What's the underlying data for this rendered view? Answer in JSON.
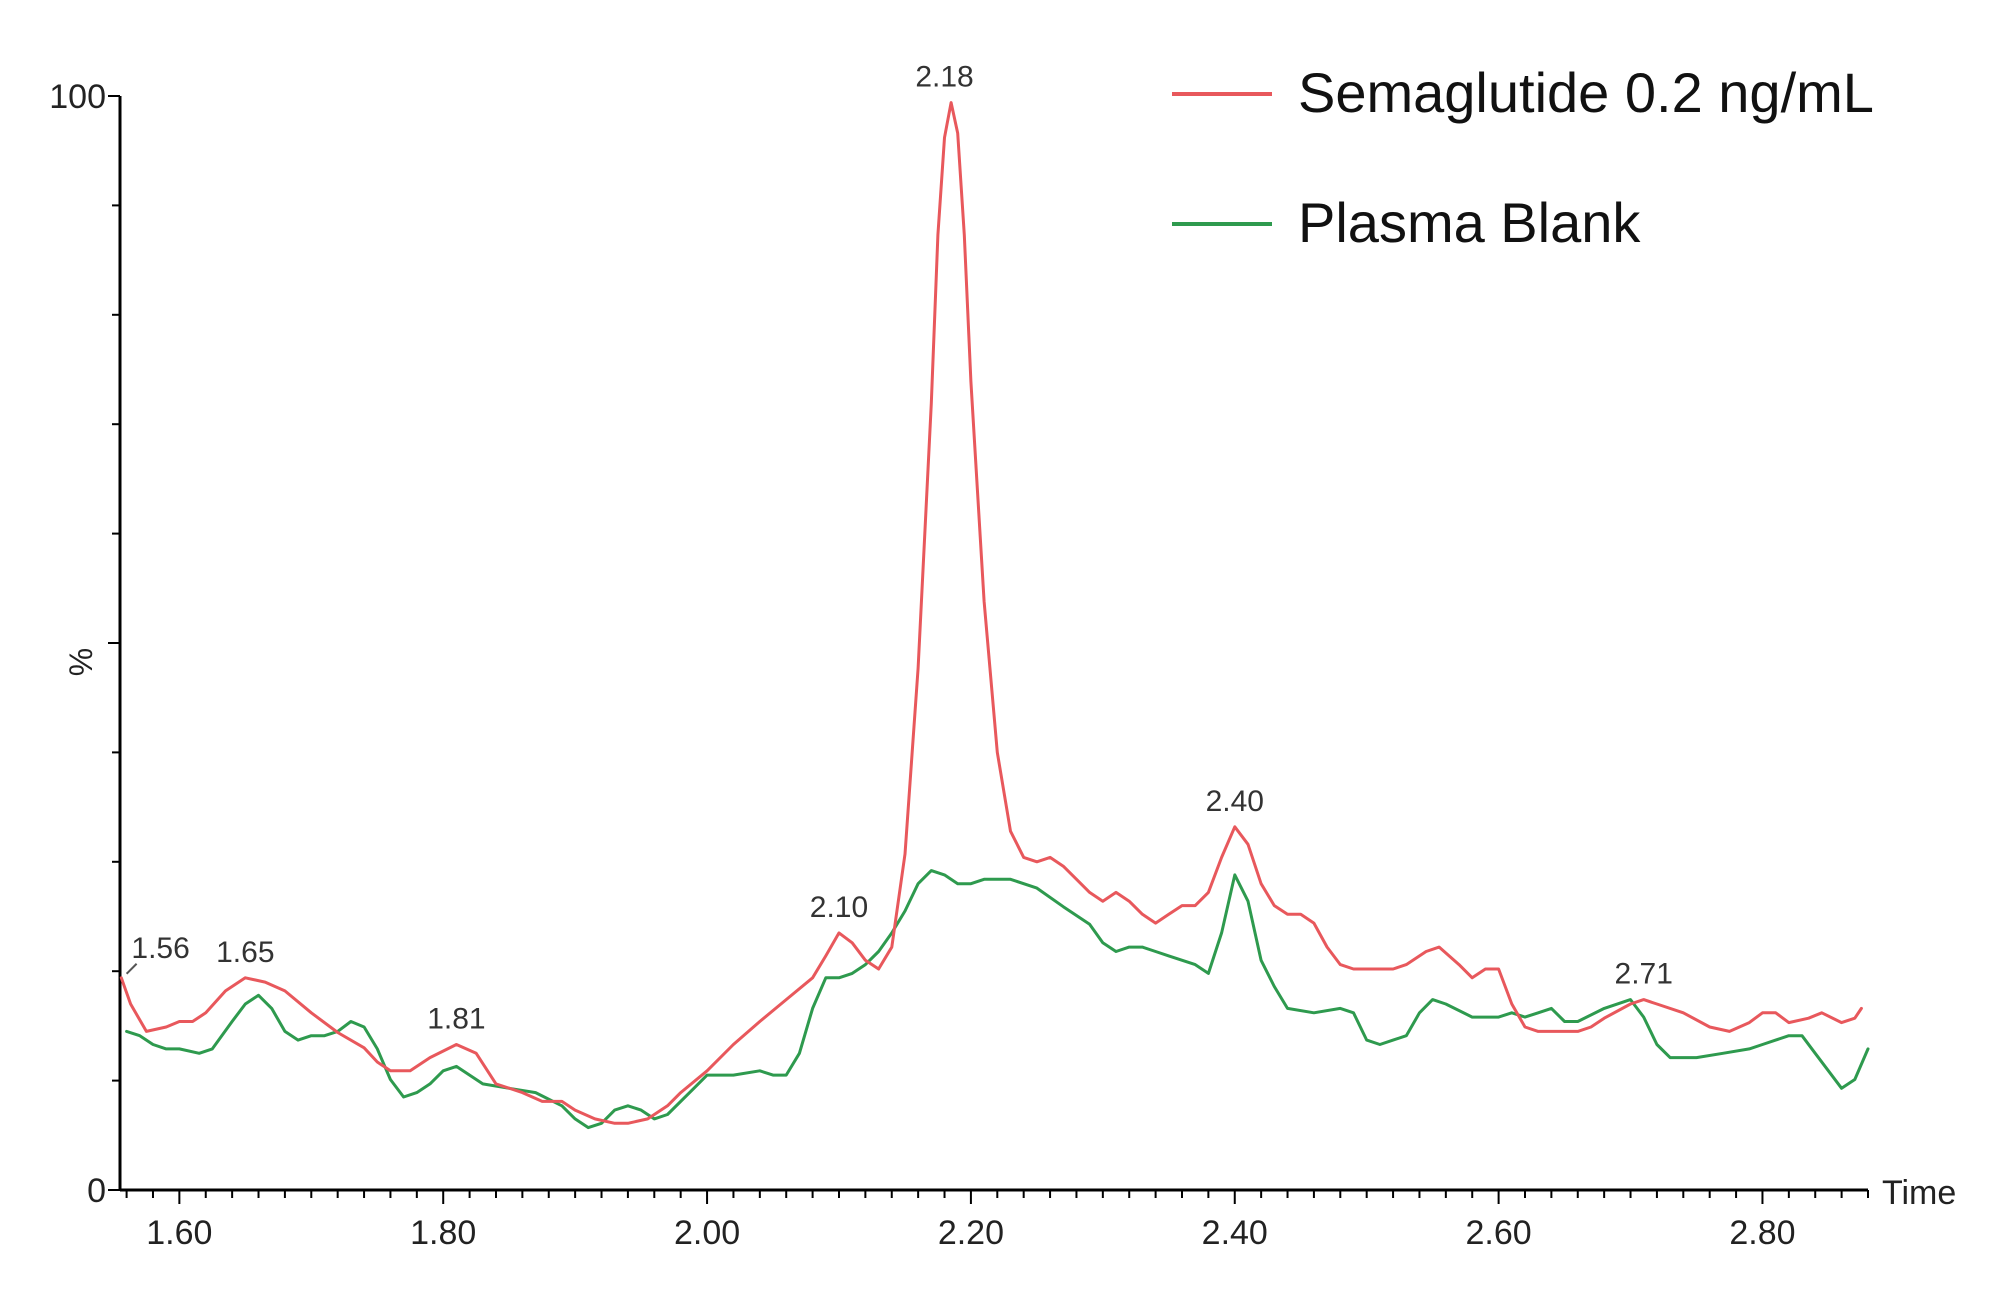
{
  "chart_data": {
    "type": "line",
    "xlabel": "Time",
    "ylabel": "%",
    "xlim": [
      1.555,
      2.88
    ],
    "ylim": [
      0,
      100
    ],
    "x_ticks": [
      "1.60",
      "1.80",
      "2.00",
      "2.20",
      "2.40",
      "2.60",
      "2.80"
    ],
    "y_ticks": [
      "0",
      "100"
    ],
    "legend_position": "top-right",
    "colors": {
      "semaglutide": "#e8585c",
      "blank": "#2e9a4e"
    },
    "series": [
      {
        "name": "Semaglutide 0.2 ng/mL",
        "points": [
          [
            1.556,
            19.4
          ],
          [
            1.563,
            17.0
          ],
          [
            1.575,
            14.5
          ],
          [
            1.59,
            14.9
          ],
          [
            1.6,
            15.4
          ],
          [
            1.61,
            15.4
          ],
          [
            1.62,
            16.2
          ],
          [
            1.635,
            18.2
          ],
          [
            1.65,
            19.4
          ],
          [
            1.665,
            19.0
          ],
          [
            1.68,
            18.2
          ],
          [
            1.7,
            16.2
          ],
          [
            1.72,
            14.4
          ],
          [
            1.74,
            13.0
          ],
          [
            1.75,
            11.7
          ],
          [
            1.76,
            10.9
          ],
          [
            1.775,
            10.9
          ],
          [
            1.79,
            12.1
          ],
          [
            1.81,
            13.3
          ],
          [
            1.825,
            12.5
          ],
          [
            1.84,
            9.7
          ],
          [
            1.86,
            8.9
          ],
          [
            1.875,
            8.1
          ],
          [
            1.89,
            8.1
          ],
          [
            1.9,
            7.3
          ],
          [
            1.915,
            6.5
          ],
          [
            1.93,
            6.1
          ],
          [
            1.94,
            6.1
          ],
          [
            1.955,
            6.5
          ],
          [
            1.97,
            7.7
          ],
          [
            1.98,
            8.9
          ],
          [
            2.0,
            10.9
          ],
          [
            2.02,
            13.3
          ],
          [
            2.04,
            15.4
          ],
          [
            2.06,
            17.4
          ],
          [
            2.08,
            19.4
          ],
          [
            2.09,
            21.4
          ],
          [
            2.1,
            23.5
          ],
          [
            2.11,
            22.6
          ],
          [
            2.12,
            21.0
          ],
          [
            2.13,
            20.2
          ],
          [
            2.14,
            22.2
          ],
          [
            2.15,
            30.7
          ],
          [
            2.16,
            47.7
          ],
          [
            2.17,
            71.9
          ],
          [
            2.175,
            87.3
          ],
          [
            2.18,
            96.2
          ],
          [
            2.185,
            99.4
          ],
          [
            2.19,
            96.6
          ],
          [
            2.195,
            87.3
          ],
          [
            2.2,
            73.9
          ],
          [
            2.21,
            53.8
          ],
          [
            2.22,
            40.0
          ],
          [
            2.23,
            32.8
          ],
          [
            2.24,
            30.4
          ],
          [
            2.25,
            30.0
          ],
          [
            2.26,
            30.4
          ],
          [
            2.27,
            29.6
          ],
          [
            2.28,
            28.4
          ],
          [
            2.29,
            27.2
          ],
          [
            2.3,
            26.4
          ],
          [
            2.31,
            27.2
          ],
          [
            2.32,
            26.4
          ],
          [
            2.33,
            25.2
          ],
          [
            2.34,
            24.4
          ],
          [
            2.35,
            25.2
          ],
          [
            2.36,
            26.0
          ],
          [
            2.37,
            26.0
          ],
          [
            2.38,
            27.2
          ],
          [
            2.39,
            30.4
          ],
          [
            2.4,
            33.2
          ],
          [
            2.41,
            31.6
          ],
          [
            2.42,
            28.0
          ],
          [
            2.43,
            26.0
          ],
          [
            2.44,
            25.2
          ],
          [
            2.45,
            25.2
          ],
          [
            2.46,
            24.4
          ],
          [
            2.47,
            22.2
          ],
          [
            2.48,
            20.6
          ],
          [
            2.49,
            20.2
          ],
          [
            2.5,
            20.2
          ],
          [
            2.52,
            20.2
          ],
          [
            2.53,
            20.6
          ],
          [
            2.545,
            21.8
          ],
          [
            2.555,
            22.2
          ],
          [
            2.57,
            20.6
          ],
          [
            2.58,
            19.4
          ],
          [
            2.59,
            20.2
          ],
          [
            2.6,
            20.2
          ],
          [
            2.61,
            17.0
          ],
          [
            2.62,
            14.9
          ],
          [
            2.63,
            14.5
          ],
          [
            2.645,
            14.5
          ],
          [
            2.66,
            14.5
          ],
          [
            2.67,
            14.9
          ],
          [
            2.68,
            15.7
          ],
          [
            2.7,
            17.0
          ],
          [
            2.71,
            17.4
          ],
          [
            2.72,
            17.0
          ],
          [
            2.74,
            16.2
          ],
          [
            2.76,
            14.9
          ],
          [
            2.775,
            14.5
          ],
          [
            2.79,
            15.3
          ],
          [
            2.8,
            16.2
          ],
          [
            2.81,
            16.2
          ],
          [
            2.82,
            15.3
          ],
          [
            2.835,
            15.7
          ],
          [
            2.845,
            16.2
          ],
          [
            2.86,
            15.3
          ],
          [
            2.87,
            15.7
          ],
          [
            2.875,
            16.6
          ]
        ],
        "peak_labels": [
          {
            "x": 1.56,
            "y": 19.4,
            "label": "1.56"
          },
          {
            "x": 1.65,
            "y": 19.4,
            "label": "1.65"
          },
          {
            "x": 1.81,
            "y": 13.3,
            "label": "1.81"
          },
          {
            "x": 2.1,
            "y": 23.5,
            "label": "2.10"
          },
          {
            "x": 2.18,
            "y": 99.4,
            "label": "2.18"
          },
          {
            "x": 2.4,
            "y": 33.2,
            "label": "2.40"
          },
          {
            "x": 2.71,
            "y": 17.4,
            "label": "2.71"
          }
        ]
      },
      {
        "name": "Plasma Blank",
        "points": [
          [
            1.56,
            14.5
          ],
          [
            1.57,
            14.1
          ],
          [
            1.58,
            13.3
          ],
          [
            1.59,
            12.9
          ],
          [
            1.6,
            12.9
          ],
          [
            1.615,
            12.5
          ],
          [
            1.625,
            12.9
          ],
          [
            1.64,
            15.4
          ],
          [
            1.65,
            17.0
          ],
          [
            1.66,
            17.8
          ],
          [
            1.67,
            16.6
          ],
          [
            1.68,
            14.5
          ],
          [
            1.69,
            13.7
          ],
          [
            1.7,
            14.1
          ],
          [
            1.71,
            14.1
          ],
          [
            1.72,
            14.5
          ],
          [
            1.73,
            15.4
          ],
          [
            1.74,
            14.9
          ],
          [
            1.75,
            12.9
          ],
          [
            1.76,
            10.1
          ],
          [
            1.77,
            8.5
          ],
          [
            1.78,
            8.9
          ],
          [
            1.79,
            9.7
          ],
          [
            1.8,
            10.9
          ],
          [
            1.81,
            11.3
          ],
          [
            1.82,
            10.5
          ],
          [
            1.83,
            9.7
          ],
          [
            1.85,
            9.3
          ],
          [
            1.87,
            8.9
          ],
          [
            1.89,
            7.7
          ],
          [
            1.9,
            6.5
          ],
          [
            1.91,
            5.7
          ],
          [
            1.92,
            6.1
          ],
          [
            1.93,
            7.3
          ],
          [
            1.94,
            7.7
          ],
          [
            1.95,
            7.3
          ],
          [
            1.96,
            6.5
          ],
          [
            1.97,
            6.9
          ],
          [
            1.99,
            9.3
          ],
          [
            2.0,
            10.5
          ],
          [
            2.02,
            10.5
          ],
          [
            2.04,
            10.9
          ],
          [
            2.05,
            10.5
          ],
          [
            2.06,
            10.5
          ],
          [
            2.07,
            12.5
          ],
          [
            2.08,
            16.6
          ],
          [
            2.09,
            19.4
          ],
          [
            2.1,
            19.4
          ],
          [
            2.11,
            19.8
          ],
          [
            2.12,
            20.6
          ],
          [
            2.13,
            21.8
          ],
          [
            2.14,
            23.5
          ],
          [
            2.15,
            25.5
          ],
          [
            2.16,
            28.0
          ],
          [
            2.17,
            29.2
          ],
          [
            2.18,
            28.8
          ],
          [
            2.19,
            28.0
          ],
          [
            2.2,
            28.0
          ],
          [
            2.21,
            28.4
          ],
          [
            2.22,
            28.4
          ],
          [
            2.23,
            28.4
          ],
          [
            2.25,
            27.6
          ],
          [
            2.27,
            25.9
          ],
          [
            2.29,
            24.3
          ],
          [
            2.3,
            22.6
          ],
          [
            2.31,
            21.8
          ],
          [
            2.32,
            22.2
          ],
          [
            2.33,
            22.2
          ],
          [
            2.34,
            21.8
          ],
          [
            2.35,
            21.4
          ],
          [
            2.37,
            20.6
          ],
          [
            2.38,
            19.8
          ],
          [
            2.39,
            23.5
          ],
          [
            2.4,
            28.8
          ],
          [
            2.41,
            26.4
          ],
          [
            2.42,
            21.0
          ],
          [
            2.43,
            18.6
          ],
          [
            2.44,
            16.6
          ],
          [
            2.46,
            16.2
          ],
          [
            2.48,
            16.6
          ],
          [
            2.49,
            16.2
          ],
          [
            2.5,
            13.7
          ],
          [
            2.51,
            13.3
          ],
          [
            2.52,
            13.7
          ],
          [
            2.53,
            14.1
          ],
          [
            2.54,
            16.2
          ],
          [
            2.55,
            17.4
          ],
          [
            2.56,
            17.0
          ],
          [
            2.58,
            15.8
          ],
          [
            2.6,
            15.8
          ],
          [
            2.61,
            16.2
          ],
          [
            2.62,
            15.8
          ],
          [
            2.63,
            16.2
          ],
          [
            2.64,
            16.6
          ],
          [
            2.65,
            15.4
          ],
          [
            2.66,
            15.4
          ],
          [
            2.68,
            16.6
          ],
          [
            2.7,
            17.4
          ],
          [
            2.71,
            15.8
          ],
          [
            2.72,
            13.3
          ],
          [
            2.73,
            12.1
          ],
          [
            2.75,
            12.1
          ],
          [
            2.77,
            12.5
          ],
          [
            2.79,
            12.9
          ],
          [
            2.8,
            13.3
          ],
          [
            2.81,
            13.7
          ],
          [
            2.82,
            14.1
          ],
          [
            2.83,
            14.1
          ],
          [
            2.84,
            12.5
          ],
          [
            2.85,
            10.9
          ],
          [
            2.86,
            9.3
          ],
          [
            2.87,
            10.1
          ],
          [
            2.88,
            12.9
          ]
        ]
      }
    ]
  }
}
